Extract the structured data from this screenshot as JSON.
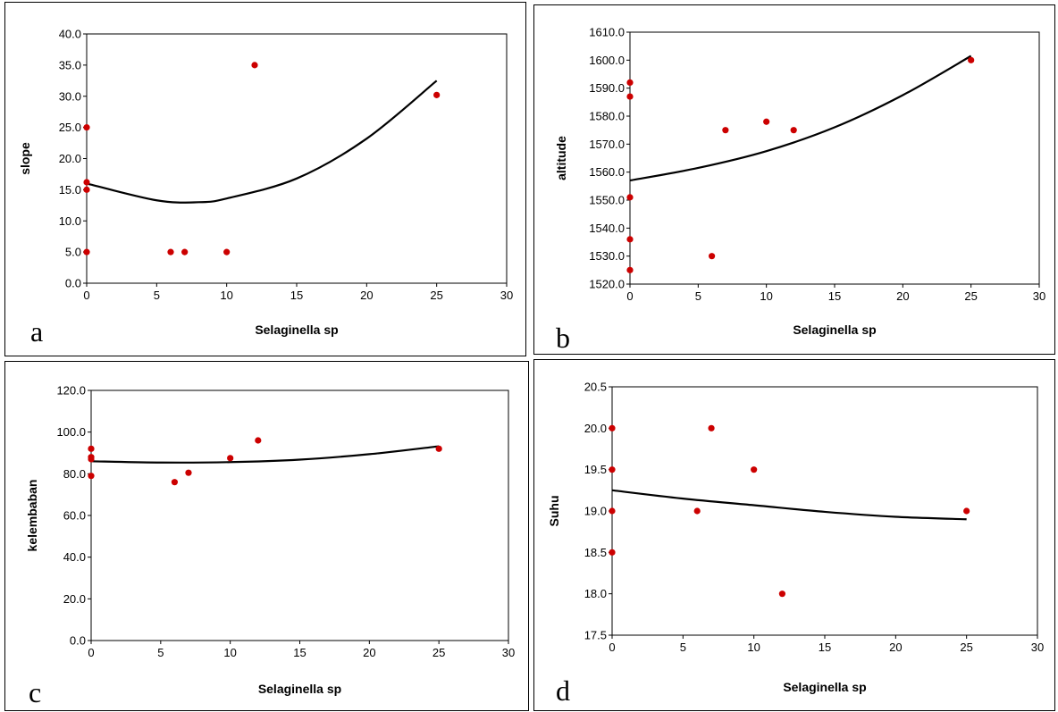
{
  "chart_data": [
    {
      "type": "scatter",
      "panel_label": "a",
      "xlabel": "Selaginella sp",
      "ylabel": "slope",
      "xlim": [
        0,
        30
      ],
      "ylim": [
        0,
        40
      ],
      "x_ticks": [
        "0",
        "5",
        "10",
        "15",
        "20",
        "25",
        "30"
      ],
      "y_ticks": [
        "0.0",
        "5.0",
        "10.0",
        "15.0",
        "20.0",
        "25.0",
        "30.0",
        "35.0",
        "40.0"
      ],
      "points": [
        [
          0,
          25.0
        ],
        [
          0,
          16.2
        ],
        [
          0,
          15.0
        ],
        [
          0,
          5.0
        ],
        [
          6,
          5.0
        ],
        [
          7,
          5.0
        ],
        [
          10,
          5.0
        ],
        [
          12,
          35.0
        ],
        [
          25,
          30.2
        ]
      ],
      "trendline": {
        "kind": "polynomial-2",
        "x": [
          0,
          5,
          8,
          10,
          15,
          20,
          25
        ],
        "y": [
          16.0,
          13.3,
          13.0,
          13.6,
          16.8,
          23.2,
          32.5
        ]
      },
      "colors": {
        "points": "#cc0000",
        "trendline": "#000000"
      }
    },
    {
      "type": "scatter",
      "panel_label": "b",
      "xlabel": "Selaginella sp",
      "ylabel": "altitude",
      "xlim": [
        0,
        30
      ],
      "ylim": [
        1520,
        1610
      ],
      "x_ticks": [
        "0",
        "5",
        "10",
        "15",
        "20",
        "25",
        "30"
      ],
      "y_ticks": [
        "1520.0",
        "1530.0",
        "1540.0",
        "1550.0",
        "1560.0",
        "1570.0",
        "1580.0",
        "1590.0",
        "1600.0",
        "1610.0"
      ],
      "points": [
        [
          0,
          1592
        ],
        [
          0,
          1587
        ],
        [
          0,
          1551
        ],
        [
          0,
          1536
        ],
        [
          0,
          1525
        ],
        [
          6,
          1530
        ],
        [
          7,
          1575
        ],
        [
          10,
          1578
        ],
        [
          12,
          1575
        ],
        [
          25,
          1600
        ]
      ],
      "trendline": {
        "kind": "polynomial-2",
        "x": [
          0,
          5,
          10,
          15,
          20,
          25
        ],
        "y": [
          1557,
          1561.5,
          1567.5,
          1576,
          1587.5,
          1601.5
        ]
      },
      "colors": {
        "points": "#cc0000",
        "trendline": "#000000"
      }
    },
    {
      "type": "scatter",
      "panel_label": "c",
      "xlabel": "Selaginella sp",
      "ylabel": "kelembaban",
      "xlim": [
        0,
        30
      ],
      "ylim": [
        0,
        120
      ],
      "x_ticks": [
        "0",
        "5",
        "10",
        "15",
        "20",
        "25",
        "30"
      ],
      "y_ticks": [
        "0.0",
        "20.0",
        "40.0",
        "60.0",
        "80.0",
        "100.0",
        "120.0"
      ],
      "points": [
        [
          0,
          92
        ],
        [
          0,
          88
        ],
        [
          0,
          87
        ],
        [
          0,
          79
        ],
        [
          6,
          76
        ],
        [
          7,
          80.5
        ],
        [
          10,
          87.5
        ],
        [
          12,
          96
        ],
        [
          25,
          92
        ]
      ],
      "trendline": {
        "kind": "polynomial-2",
        "x": [
          0,
          5,
          10,
          15,
          20,
          25
        ],
        "y": [
          86.0,
          85.4,
          85.6,
          86.8,
          89.4,
          93.2
        ]
      },
      "colors": {
        "points": "#cc0000",
        "trendline": "#000000"
      }
    },
    {
      "type": "scatter",
      "panel_label": "d",
      "xlabel": "Selaginella sp",
      "ylabel": "Suhu",
      "xlim": [
        0,
        30
      ],
      "ylim": [
        17.5,
        20.5
      ],
      "x_ticks": [
        "0",
        "5",
        "10",
        "15",
        "20",
        "25",
        "30"
      ],
      "y_ticks": [
        "17.5",
        "18.0",
        "18.5",
        "19.0",
        "19.5",
        "20.0",
        "20.5"
      ],
      "points": [
        [
          0,
          20.0
        ],
        [
          0,
          19.5
        ],
        [
          0,
          19.0
        ],
        [
          0,
          18.5
        ],
        [
          6,
          19.0
        ],
        [
          7,
          20.0
        ],
        [
          10,
          19.5
        ],
        [
          12,
          18.0
        ],
        [
          25,
          19.0
        ]
      ],
      "trendline": {
        "kind": "polynomial-2",
        "x": [
          0,
          5,
          10,
          15,
          20,
          25
        ],
        "y": [
          19.25,
          19.15,
          19.07,
          18.99,
          18.93,
          18.9
        ]
      },
      "colors": {
        "points": "#cc0000",
        "trendline": "#000000"
      }
    }
  ]
}
